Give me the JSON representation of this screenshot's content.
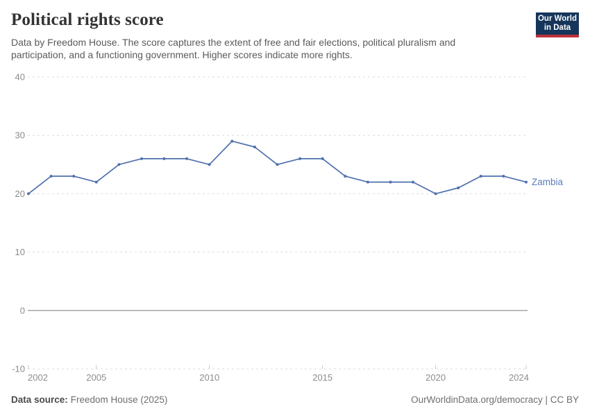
{
  "header": {
    "title": "Political rights score",
    "subtitle": "Data by Freedom House. The score captures the extent of free and fair elections, political pluralism and participation, and a functioning government. Higher scores indicate more rights.",
    "logo": {
      "line1": "Our World",
      "line2": "in Data"
    }
  },
  "chart_data": {
    "type": "line",
    "title": "Political rights score",
    "entity": "Zambia",
    "x": [
      2002,
      2003,
      2004,
      2005,
      2006,
      2007,
      2008,
      2009,
      2010,
      2011,
      2012,
      2013,
      2014,
      2015,
      2016,
      2017,
      2018,
      2019,
      2020,
      2021,
      2022,
      2023,
      2024
    ],
    "series": [
      {
        "name": "Zambia",
        "color": "#4f70ad",
        "values": [
          20,
          23,
          23,
          22,
          25,
          26,
          26,
          26,
          25,
          29,
          28,
          25,
          26,
          26,
          23,
          22,
          22,
          22,
          20,
          21,
          23,
          23,
          22
        ]
      }
    ],
    "x_ticks": [
      2002,
      2005,
      2010,
      2015,
      2020,
      2024
    ],
    "y_ticks": [
      40,
      30,
      20,
      10,
      0,
      -10
    ],
    "xlim": [
      2002,
      2024
    ],
    "ylim": [
      -10,
      40
    ],
    "xlabel": "",
    "ylabel": "",
    "grid": "horizontal-dashed",
    "zero_line": true,
    "legend_position": "end-of-line-label",
    "markers": true
  },
  "footer": {
    "source_label": "Data source:",
    "source_value": "Freedom House (2025)",
    "credit": "OurWorldinData.org/democracy | CC BY"
  },
  "colors": {
    "series": "#4f70ad",
    "entity_label": "#5b7db8",
    "grid": "#dcdcdc",
    "zero_line": "#a6a6a6",
    "axis_tick_mark": "#c8c8c8",
    "tick_text": "#8c8c8c",
    "title_text": "#333333",
    "subtitle_text": "#5a5a5a",
    "footer_text": "#6e6e6e",
    "logo_bg": "#16355a",
    "logo_accent": "#bc3039"
  }
}
